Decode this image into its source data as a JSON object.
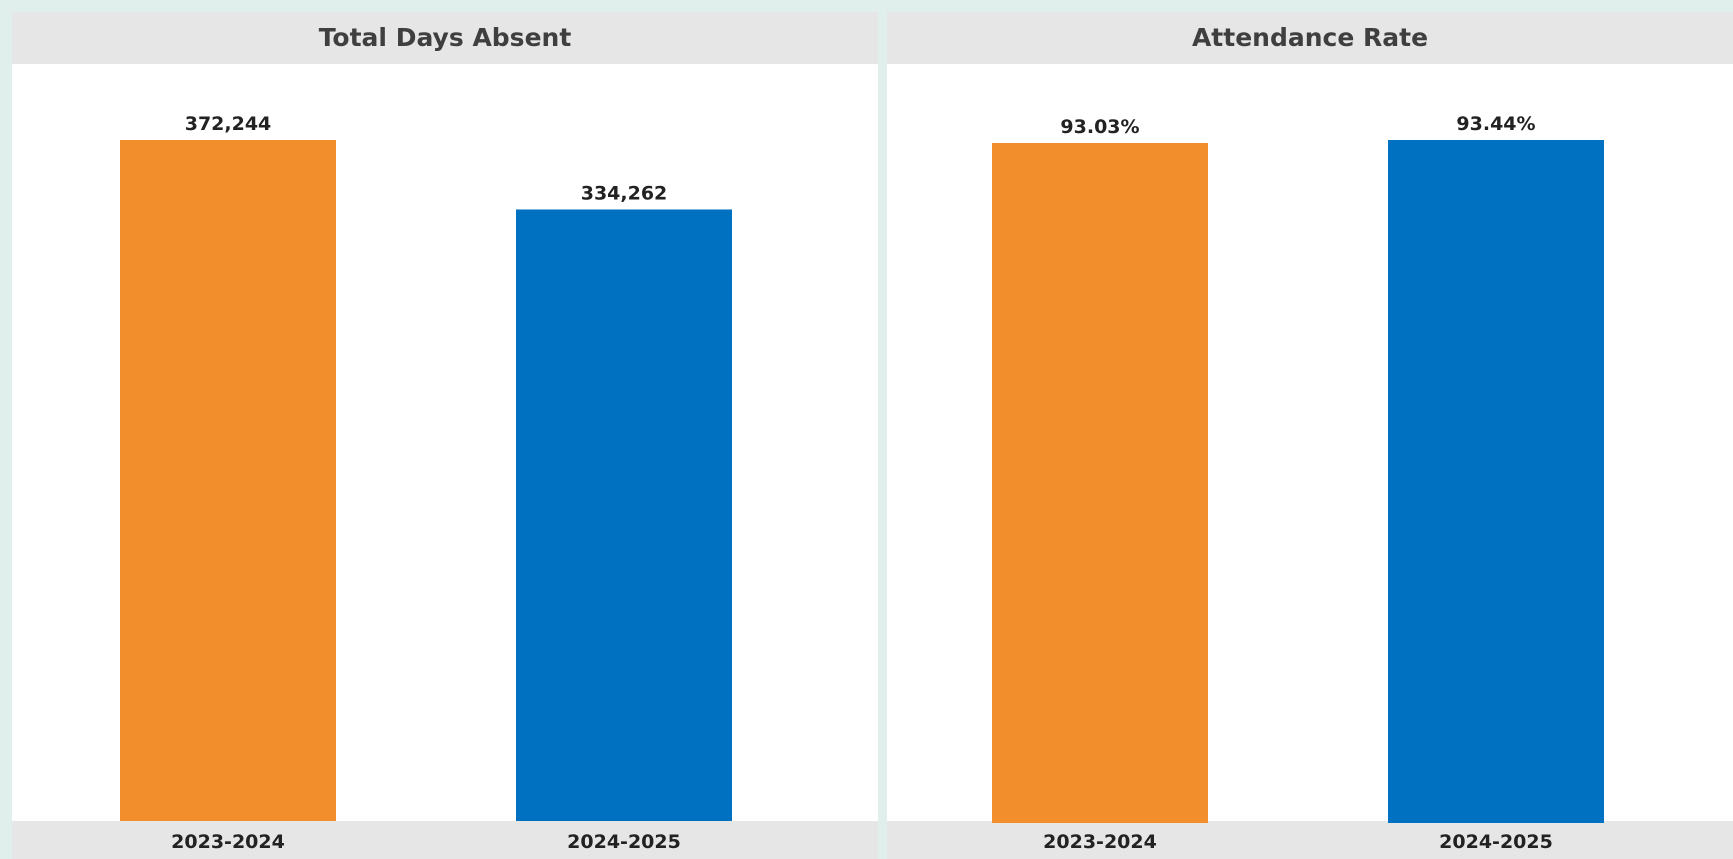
{
  "chart_data": [
    {
      "type": "bar",
      "title": "Total Days Absent",
      "categories": [
        "2023-2024",
        "2024-2025"
      ],
      "values": [
        372244,
        334262
      ],
      "value_labels": [
        "372,244",
        "334,262"
      ],
      "colors": [
        "#f28e2b",
        "#0070c0"
      ],
      "xlabel": "",
      "ylabel": ""
    },
    {
      "type": "bar",
      "title": "Attendance Rate",
      "categories": [
        "2023-2024",
        "2024-2025"
      ],
      "values": [
        93.03,
        93.44
      ],
      "value_labels": [
        "93.03%",
        "93.44%"
      ],
      "colors": [
        "#f28e2b",
        "#0070c0"
      ],
      "xlabel": "",
      "ylabel": ""
    }
  ]
}
